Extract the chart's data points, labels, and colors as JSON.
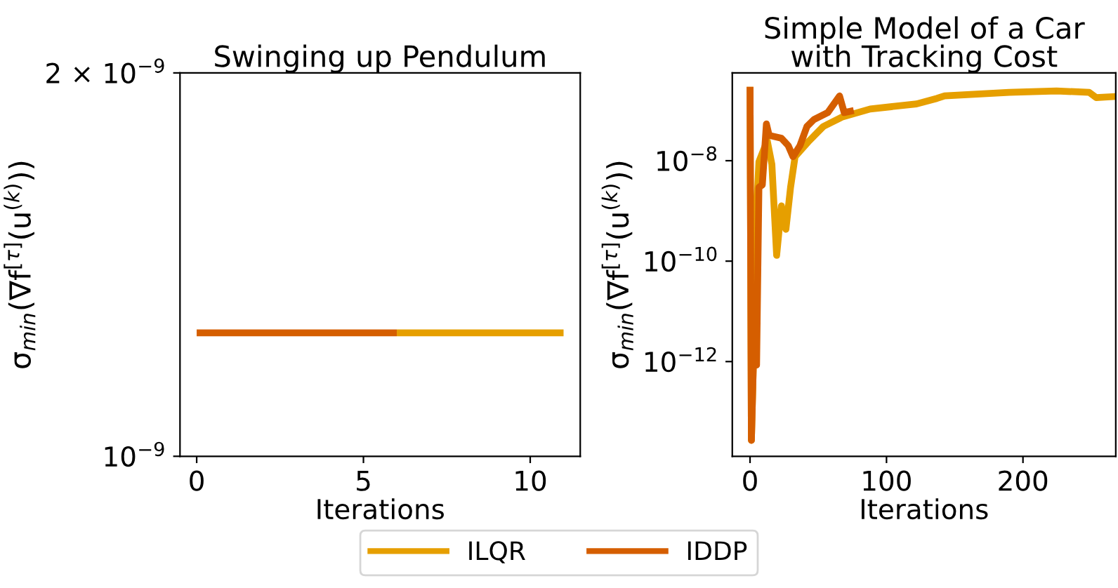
{
  "chart_data": [
    {
      "type": "line",
      "title": "Swinging up Pendulum",
      "xlabel": "Iterations",
      "ylabel": "σ$_{min}$(∇f$^{[τ]}$(u$^{(k)}$))",
      "log": "y",
      "xlim": [
        -0.5,
        11.5
      ],
      "xticks": [
        0,
        5,
        10
      ],
      "ylim": [
        1e-09,
        2e-09
      ],
      "yticks": [
        {
          "value": 1e-09,
          "label": "10$^{−9}$"
        },
        {
          "value": 2e-09,
          "label": "2 × 10$^{−9}$"
        }
      ],
      "legend": "bottom",
      "series": [
        {
          "name": "ILQR",
          "color": "#e69f00",
          "x": [
            6,
            7,
            8,
            9,
            10,
            11
          ],
          "values": [
            1.25e-09,
            1.25e-09,
            1.25e-09,
            1.25e-09,
            1.25e-09,
            1.25e-09
          ]
        },
        {
          "name": "IDDP",
          "color": "#d55e00",
          "x": [
            0,
            1,
            2,
            3,
            4,
            5,
            6
          ],
          "values": [
            1.25e-09,
            1.25e-09,
            1.25e-09,
            1.25e-09,
            1.25e-09,
            1.25e-09,
            1.25e-09
          ]
        }
      ]
    },
    {
      "type": "line",
      "title": "Simple Model of a Car\nwith Tracking Cost",
      "xlabel": "Iterations",
      "ylabel": "σ$_{min}$(∇f$^{[τ]}$(u$^{(k)}$))",
      "log": "y",
      "xlim": [
        -13,
        268
      ],
      "xticks": [
        0,
        100,
        200
      ],
      "ylim": [
        1.3e-14,
        5.6e-07
      ],
      "yticks": [
        {
          "value": 1e-12,
          "label": "10$^{−12}$"
        },
        {
          "value": 1e-10,
          "label": "10$^{−10}$"
        },
        {
          "value": 1e-08,
          "label": "10$^{−8}$"
        }
      ],
      "legend": "bottom",
      "series": [
        {
          "name": "ILQR",
          "color": "#e69f00",
          "x": [
            0,
            1,
            2.4,
            4.8,
            6.5,
            12.6,
            16,
            19.5,
            23,
            26.3,
            29.7,
            33,
            43.4,
            53.7,
            67.4,
            88,
            122,
            137,
            142.6,
            190,
            224.6,
            248.5,
            253.7,
            268
          ],
          "values": [
            2.95e-07,
            2.7e-14,
            8.5e-13,
            1e-09,
            9.5e-09,
            2.5e-08,
            8.5e-09,
            1.3e-10,
            1.26e-09,
            4.3e-10,
            2.95e-09,
            1.2e-08,
            2.5e-08,
            4.8e-08,
            7.4e-08,
            1.07e-07,
            1.35e-07,
            1.74e-07,
            1.95e-07,
            2.3e-07,
            2.45e-07,
            2.3e-07,
            1.8e-07,
            1.9e-07
          ]
        },
        {
          "name": "IDDP",
          "color": "#d55e00",
          "x": [
            0,
            1,
            2.4,
            4.8,
            6.5,
            9,
            12,
            14,
            23,
            28,
            31.5,
            36.6,
            41.7,
            46.8,
            57,
            65.6,
            69,
            76
          ],
          "values": [
            2.95e-07,
            2.7e-14,
            8.5e-13,
            8.5e-13,
            2.95e-09,
            3.3e-09,
            5.4e-08,
            3.2e-08,
            2.8e-08,
            2e-08,
            1.2e-08,
            2e-08,
            4.8e-08,
            6.6e-08,
            9.1e-08,
            1.95e-07,
            9.1e-08,
            1e-07
          ]
        }
      ]
    }
  ]
}
